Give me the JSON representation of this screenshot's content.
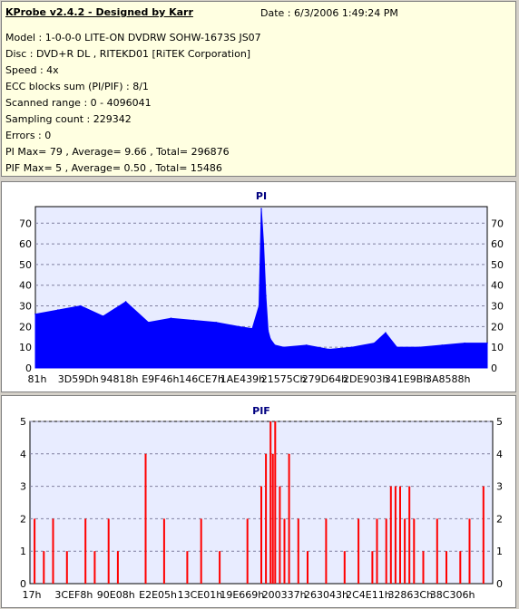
{
  "info": {
    "title": "KProbe v2.4.2 - Designed by Karr",
    "date": "Date : 6/3/2006 1:49:24 PM",
    "lines": [
      "Model : 1-0-0-0 LITE-ON DVDRW SOHW-1673S JS07",
      "Disc : DVD+R DL , RITEKD01 [RiTEK Corporation]",
      "Speed : 4x",
      "ECC blocks sum (PI/PIF) : 8/1",
      "Scanned range : 0 - 4096041",
      "Sampling count : 229342",
      "Errors : 0",
      "PI Max= 79 , Average= 9.66 , Total= 296876",
      "PIF Max= 5 , Average= 0.50 , Total= 15486"
    ]
  },
  "colors": {
    "plot_background": "#e8ecff",
    "series": "#0000ff",
    "pif_series": "#ff0000",
    "grid": "#8080a0",
    "title": "#000080"
  },
  "chart_data": [
    {
      "type": "area",
      "title": "PI",
      "xlabel": "",
      "ylabel": "",
      "ylim": [
        0,
        78
      ],
      "yticks": [
        0,
        10,
        20,
        30,
        40,
        50,
        60,
        70
      ],
      "xticklabels": [
        "81h",
        "3D59Dh",
        "94818h",
        "E9F46h",
        "146CE7h",
        "1AE439h",
        "21575Ch",
        "279D64h",
        "2DE903h",
        "341E9Bh",
        "3A8588h"
      ],
      "grid": true,
      "x_fraction": [
        0,
        0.05,
        0.1,
        0.15,
        0.2,
        0.25,
        0.3,
        0.35,
        0.4,
        0.45,
        0.48,
        0.495,
        0.5,
        0.505,
        0.51,
        0.515,
        0.52,
        0.53,
        0.55,
        0.6,
        0.65,
        0.7,
        0.75,
        0.775,
        0.8,
        0.85,
        0.9,
        0.95,
        1.0
      ],
      "values": [
        26,
        28,
        30,
        25,
        32,
        22,
        24,
        23,
        22,
        20,
        19,
        30,
        77,
        60,
        35,
        18,
        14,
        11,
        10,
        11,
        9,
        10,
        12,
        17,
        10,
        10,
        11,
        12,
        12
      ]
    },
    {
      "type": "bar",
      "title": "PIF",
      "xlabel": "",
      "ylabel": "",
      "ylim": [
        0,
        5
      ],
      "yticks": [
        0,
        1,
        2,
        3,
        4,
        5
      ],
      "xticklabels": [
        "17h",
        "3CEF8h",
        "90E08h",
        "E2E05h",
        "13CE01h",
        "19E669h",
        "200337h",
        "263043h",
        "2C4E11h",
        "32863Ch",
        "38C306h"
      ],
      "grid": true,
      "x_fraction": [
        0.01,
        0.03,
        0.05,
        0.08,
        0.12,
        0.14,
        0.17,
        0.19,
        0.25,
        0.29,
        0.34,
        0.37,
        0.41,
        0.47,
        0.5,
        0.51,
        0.52,
        0.525,
        0.53,
        0.54,
        0.55,
        0.56,
        0.58,
        0.6,
        0.64,
        0.68,
        0.71,
        0.74,
        0.75,
        0.77,
        0.78,
        0.79,
        0.8,
        0.81,
        0.82,
        0.83,
        0.85,
        0.88,
        0.9,
        0.93,
        0.95,
        0.98
      ],
      "values": [
        2,
        1,
        2,
        1,
        2,
        1,
        2,
        1,
        4,
        2,
        1,
        2,
        1,
        2,
        3,
        4,
        5,
        4,
        5,
        3,
        2,
        4,
        2,
        1,
        2,
        1,
        2,
        1,
        2,
        2,
        3,
        3,
        3,
        2,
        3,
        2,
        1,
        2,
        1,
        1,
        2,
        3
      ]
    }
  ]
}
